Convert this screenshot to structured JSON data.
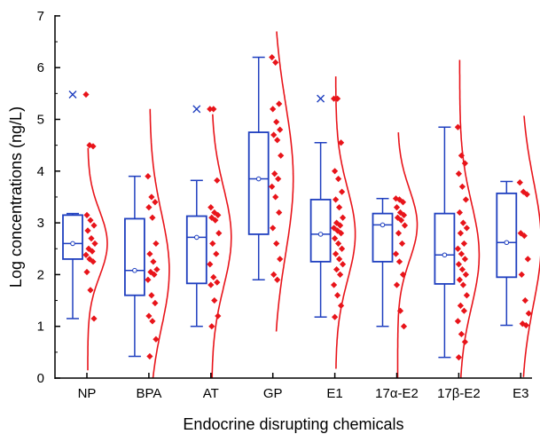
{
  "chart_data": {
    "type": "box",
    "title": "",
    "xlabel": "Endocrine disrupting chemicals",
    "ylabel": "Log concentrations (ng/L)",
    "ylim": [
      0,
      7
    ],
    "yticks": [
      "0",
      "1",
      "2",
      "3",
      "4",
      "5",
      "6",
      "7"
    ],
    "categories": [
      "NP",
      "BPA",
      "AT",
      "GP",
      "E1",
      "17α-E2",
      "17β-E2",
      "E3"
    ],
    "box_color": "#1f3fbf",
    "point_color": "#e8141a",
    "curve_color": "#e8141a",
    "boxes": [
      {
        "name": "NP",
        "min": 1.15,
        "q1": 2.3,
        "median": 2.6,
        "q3": 3.15,
        "max": 3.18,
        "mean": 2.6,
        "outliers": [
          5.48
        ],
        "points": [
          5.48,
          4.5,
          4.48,
          3.15,
          3.05,
          2.95,
          2.85,
          2.7,
          2.6,
          2.5,
          2.45,
          2.38,
          2.3,
          2.25,
          2.05,
          1.7,
          1.15
        ]
      },
      {
        "name": "BPA",
        "min": 0.42,
        "q1": 1.6,
        "median": 2.08,
        "q3": 3.08,
        "max": 3.9,
        "mean": 2.08,
        "outliers": [],
        "points": [
          3.9,
          3.5,
          3.4,
          3.3,
          3.1,
          2.6,
          2.4,
          2.25,
          2.1,
          2.05,
          2.0,
          1.9,
          1.6,
          1.45,
          1.2,
          1.1,
          0.75,
          0.42
        ]
      },
      {
        "name": "AT",
        "min": 1.0,
        "q1": 1.83,
        "median": 2.72,
        "q3": 3.13,
        "max": 3.82,
        "mean": 2.72,
        "outliers": [
          5.2
        ],
        "points": [
          5.2,
          5.2,
          3.82,
          3.3,
          3.2,
          3.15,
          3.1,
          3.05,
          2.8,
          2.6,
          2.4,
          2.2,
          1.95,
          1.85,
          1.8,
          1.5,
          1.2,
          1.0
        ]
      },
      {
        "name": "GP",
        "min": 1.9,
        "q1": 2.78,
        "median": 3.85,
        "q3": 4.75,
        "max": 6.2,
        "mean": 3.85,
        "outliers": [],
        "points": [
          6.2,
          6.1,
          5.3,
          5.2,
          4.95,
          4.8,
          4.7,
          4.6,
          4.3,
          3.95,
          3.85,
          3.7,
          3.5,
          3.2,
          2.9,
          2.6,
          2.3,
          2.0,
          1.9
        ]
      },
      {
        "name": "E1",
        "min": 1.18,
        "q1": 2.25,
        "median": 2.78,
        "q3": 3.45,
        "max": 4.55,
        "mean": 2.78,
        "outliers": [
          5.4
        ],
        "points": [
          5.4,
          5.4,
          4.55,
          4.0,
          3.85,
          3.6,
          3.45,
          3.3,
          3.1,
          3.0,
          2.95,
          2.9,
          2.85,
          2.8,
          2.7,
          2.6,
          2.5,
          2.4,
          2.3,
          2.2,
          2.1,
          2.0,
          1.8,
          1.6,
          1.4,
          1.18
        ]
      },
      {
        "name": "17α-E2",
        "min": 1.0,
        "q1": 2.25,
        "median": 2.96,
        "q3": 3.18,
        "max": 3.47,
        "mean": 2.96,
        "outliers": [],
        "points": [
          3.47,
          3.45,
          3.4,
          3.3,
          3.2,
          3.15,
          3.1,
          3.05,
          2.95,
          2.8,
          2.6,
          2.4,
          2.25,
          2.0,
          1.8,
          1.3,
          1.0
        ]
      },
      {
        "name": "17β-E2",
        "min": 0.4,
        "q1": 1.82,
        "median": 2.38,
        "q3": 3.18,
        "max": 4.85,
        "mean": 2.38,
        "outliers": [],
        "points": [
          4.85,
          4.3,
          4.15,
          3.95,
          3.7,
          3.45,
          3.2,
          3.0,
          2.9,
          2.8,
          2.6,
          2.5,
          2.4,
          2.3,
          2.2,
          2.1,
          2.0,
          1.9,
          1.8,
          1.6,
          1.4,
          1.3,
          1.1,
          0.85,
          0.7,
          0.4
        ]
      },
      {
        "name": "E3",
        "min": 1.02,
        "q1": 1.95,
        "median": 2.62,
        "q3": 3.57,
        "max": 3.8,
        "mean": 2.62,
        "outliers": [],
        "points": [
          3.78,
          3.6,
          3.55,
          2.8,
          2.75,
          2.3,
          2.0,
          1.5,
          1.25,
          1.05,
          1.02
        ]
      }
    ]
  }
}
